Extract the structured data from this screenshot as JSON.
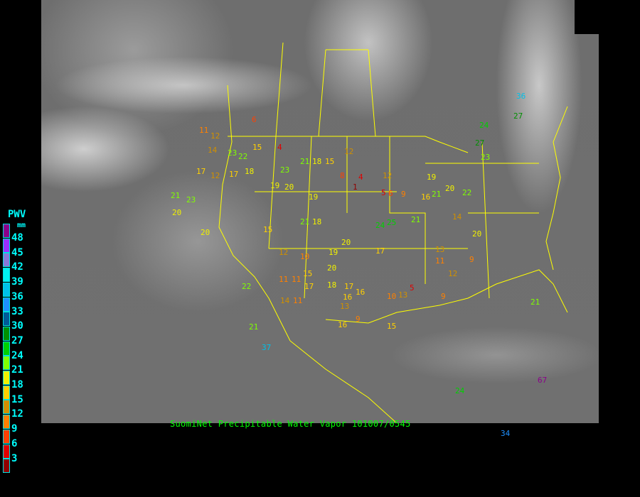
{
  "title": "SuomiNet Precipitable Water Vapor 101007/0545",
  "legend": {
    "title": "PWV",
    "unit": "mm",
    "ticks": [
      "48",
      "45",
      "42",
      "39",
      "36",
      "33",
      "30",
      "27",
      "24",
      "21",
      "18",
      "15",
      "12",
      "9",
      "6",
      "3"
    ],
    "colors": [
      "#8b008b",
      "#9a30ff",
      "#8878d8",
      "#00f0f0",
      "#00c0e8",
      "#1e90ff",
      "#005a98",
      "#009000",
      "#00d000",
      "#80ff00",
      "#f0f000",
      "#ffd000",
      "#d09000",
      "#ff8000",
      "#ff4000",
      "#e00000",
      "#900000"
    ]
  },
  "stations": [
    "6",
    "11",
    "12",
    "14",
    "23",
    "22",
    "15",
    "4",
    "21",
    "18",
    "15",
    "12",
    "17",
    "12",
    "17",
    "18",
    "23",
    "20",
    "19",
    "19",
    "8",
    "4",
    "1",
    "5",
    "12",
    "9",
    "16",
    "21",
    "20",
    "21",
    "23",
    "15",
    "21",
    "18",
    "20",
    "25",
    "24",
    "19",
    "11",
    "12",
    "10",
    "17",
    "14",
    "11",
    "17",
    "22",
    "11",
    "15",
    "20",
    "17",
    "18",
    "16",
    "10",
    "13",
    "11",
    "13",
    "12",
    "14",
    "21",
    "27",
    "23",
    "36",
    "27",
    "24",
    "21",
    "37",
    "21",
    "24",
    "67",
    "34",
    "9",
    "19",
    "20",
    "22",
    "20",
    "16",
    "9",
    "16",
    "15",
    "9",
    "13",
    "20",
    "6",
    "5"
  ]
}
